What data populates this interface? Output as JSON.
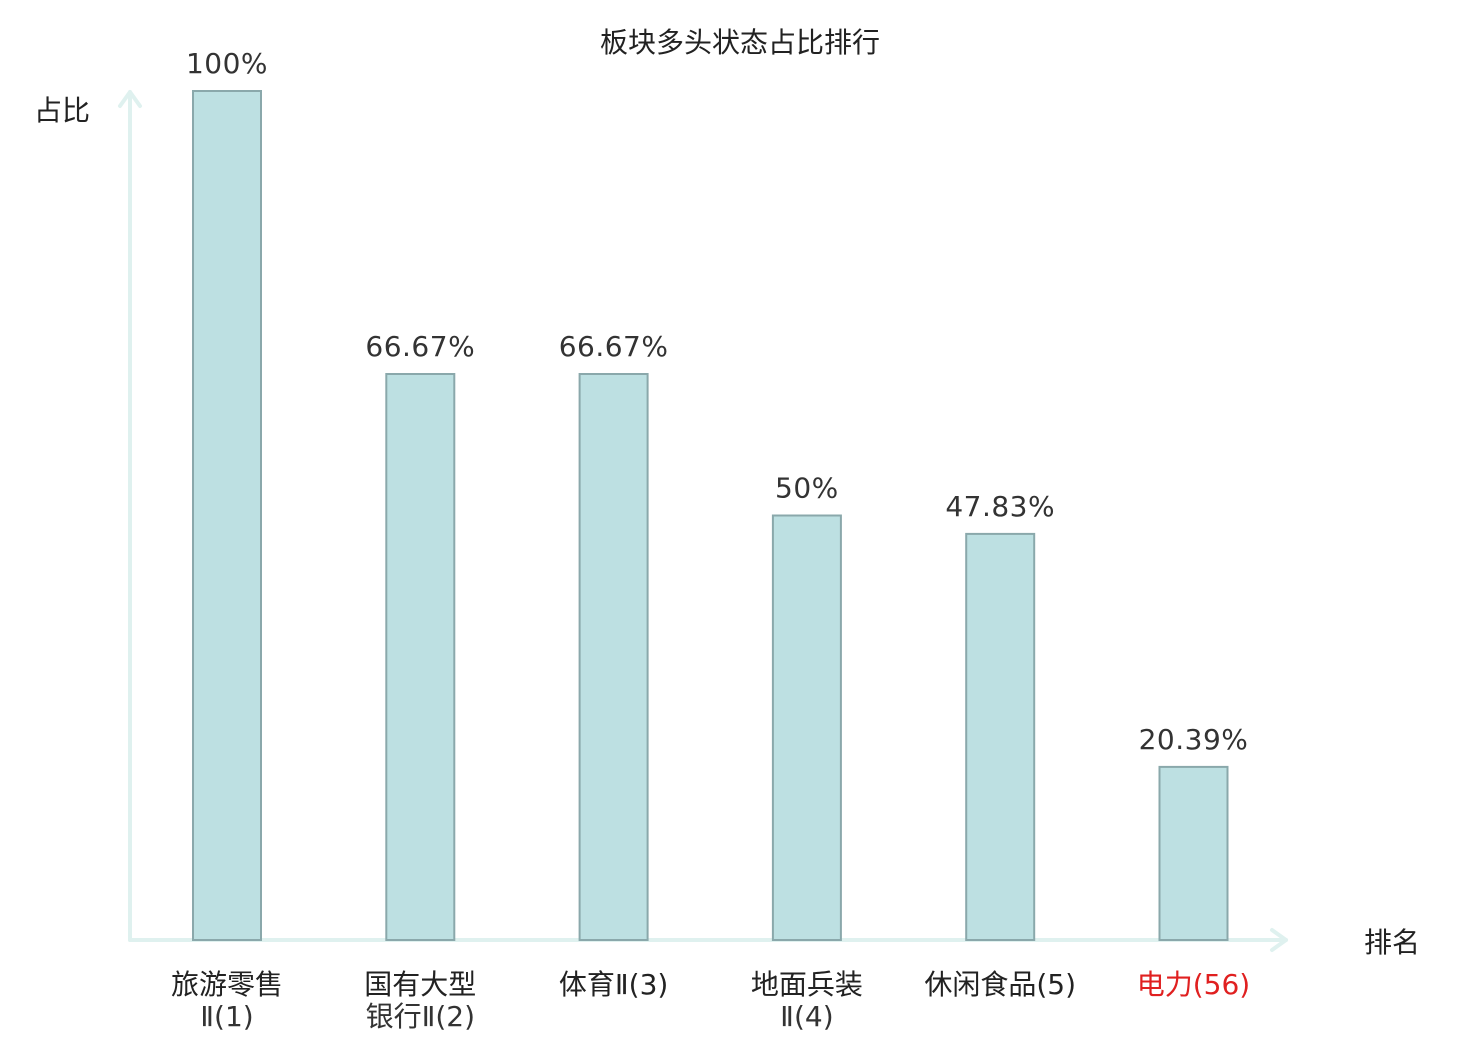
{
  "chart_data": {
    "type": "bar",
    "title": "板块多头状态占比排行",
    "ylabel": "占比",
    "xlabel": "排名",
    "ylim": [
      0,
      100
    ],
    "grid": false,
    "categories": [
      {
        "name_lines": [
          "旅游零售"
        ],
        "suffix_line": "Ⅱ(1)"
      },
      {
        "name_lines": [
          "国有大型"
        ],
        "suffix_line": "银行Ⅱ(2)"
      },
      {
        "name_lines": [
          "体育Ⅱ(3)"
        ],
        "suffix_line": ""
      },
      {
        "name_lines": [
          "地面兵装"
        ],
        "suffix_line": "Ⅱ(4)"
      },
      {
        "name_lines": [
          "休闲食品(5)"
        ],
        "suffix_line": ""
      },
      {
        "name_lines": [
          "电力(56)"
        ],
        "suffix_line": "",
        "highlight": true
      }
    ],
    "values": [
      100,
      66.67,
      66.67,
      50,
      47.83,
      20.39
    ],
    "value_labels": [
      "100%",
      "66.67%",
      "66.67%",
      "50%",
      "47.83%",
      "20.39%"
    ],
    "colors": {
      "bar_fill": "#bde0e2",
      "bar_stroke": "#8aa8ab",
      "axis": "#dff1ef",
      "highlight_label": "#e02020"
    }
  }
}
